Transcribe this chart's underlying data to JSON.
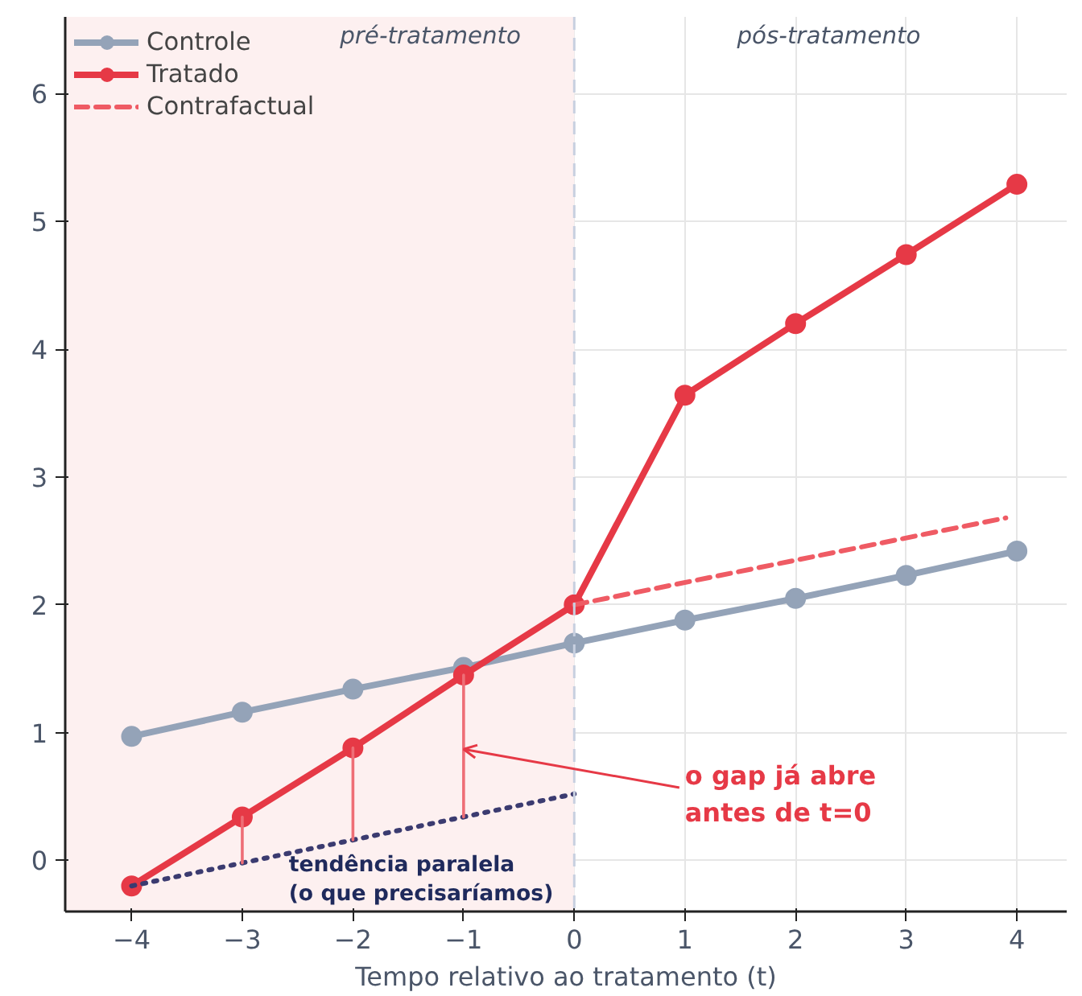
{
  "chart_data": {
    "type": "line",
    "xlabel": "Tempo relativo ao tratamento (t)",
    "xlim": [
      -4.6,
      4.45
    ],
    "ylim": [
      -0.4,
      6.6
    ],
    "xticks": [
      {
        "value": -4,
        "label": "−4"
      },
      {
        "value": -3,
        "label": "−3"
      },
      {
        "value": -2,
        "label": "−2"
      },
      {
        "value": -1,
        "label": "−1"
      },
      0,
      1,
      2,
      3,
      4
    ],
    "yticks": [
      0,
      1,
      2,
      3,
      4,
      5,
      6
    ],
    "grid": true,
    "legend": "top left",
    "series": [
      {
        "name": "Controle",
        "color": "#94a3b8",
        "marker": "circle",
        "line_style": "solid",
        "x": [
          -4,
          -3,
          -2,
          -1,
          0,
          1,
          2,
          3,
          4
        ],
        "values": [
          0.97,
          1.16,
          1.34,
          1.51,
          1.7,
          1.88,
          2.05,
          2.23,
          2.42
        ]
      },
      {
        "name": "Tratado",
        "color": "#e63946",
        "marker": "circle",
        "line_style": "solid",
        "x": [
          -4,
          -3,
          -2,
          -1,
          0,
          1,
          2,
          3,
          4
        ],
        "values": [
          -0.2,
          0.34,
          0.88,
          1.45,
          2.0,
          3.64,
          4.2,
          4.74,
          5.29
        ]
      },
      {
        "name": "Contrafactual",
        "color": "#ef5b64",
        "marker": "none",
        "line_style": "dashed",
        "x": [
          0,
          3.9
        ],
        "values": [
          2.0,
          2.68
        ]
      },
      {
        "color": "#3b3b70",
        "marker": "none",
        "line_style": "dotted",
        "x": [
          -4,
          0
        ],
        "values": [
          -0.2,
          0.52
        ]
      },
      {
        "color": "#ee6e76",
        "marker": "none",
        "line_style": "solid",
        "x": [
          -3,
          -3
        ],
        "values": [
          0.34,
          -0.02
        ]
      },
      {
        "color": "#ee6e76",
        "marker": "none",
        "line_style": "solid",
        "x": [
          -2,
          -2
        ],
        "values": [
          0.88,
          0.16
        ]
      },
      {
        "color": "#ee6e76",
        "marker": "none",
        "line_style": "solid",
        "x": [
          -1,
          -1
        ],
        "values": [
          1.45,
          0.34
        ]
      }
    ],
    "bands": [
      {
        "axis": "x",
        "from": -4.6,
        "to": 0,
        "color": "#fdf0f0"
      }
    ],
    "ref_lines": [
      {
        "axis": "x",
        "value": 0,
        "color": "#c8d0e0",
        "line_style": "dashed"
      }
    ],
    "annotations": [
      "pré-tratamento",
      "pós-tratamento",
      "tendência paralela\n(o que precisaríamos)",
      {
        "text": "o gap já abre\nantes de t=0",
        "x": -1,
        "y": 0.87
      }
    ]
  }
}
